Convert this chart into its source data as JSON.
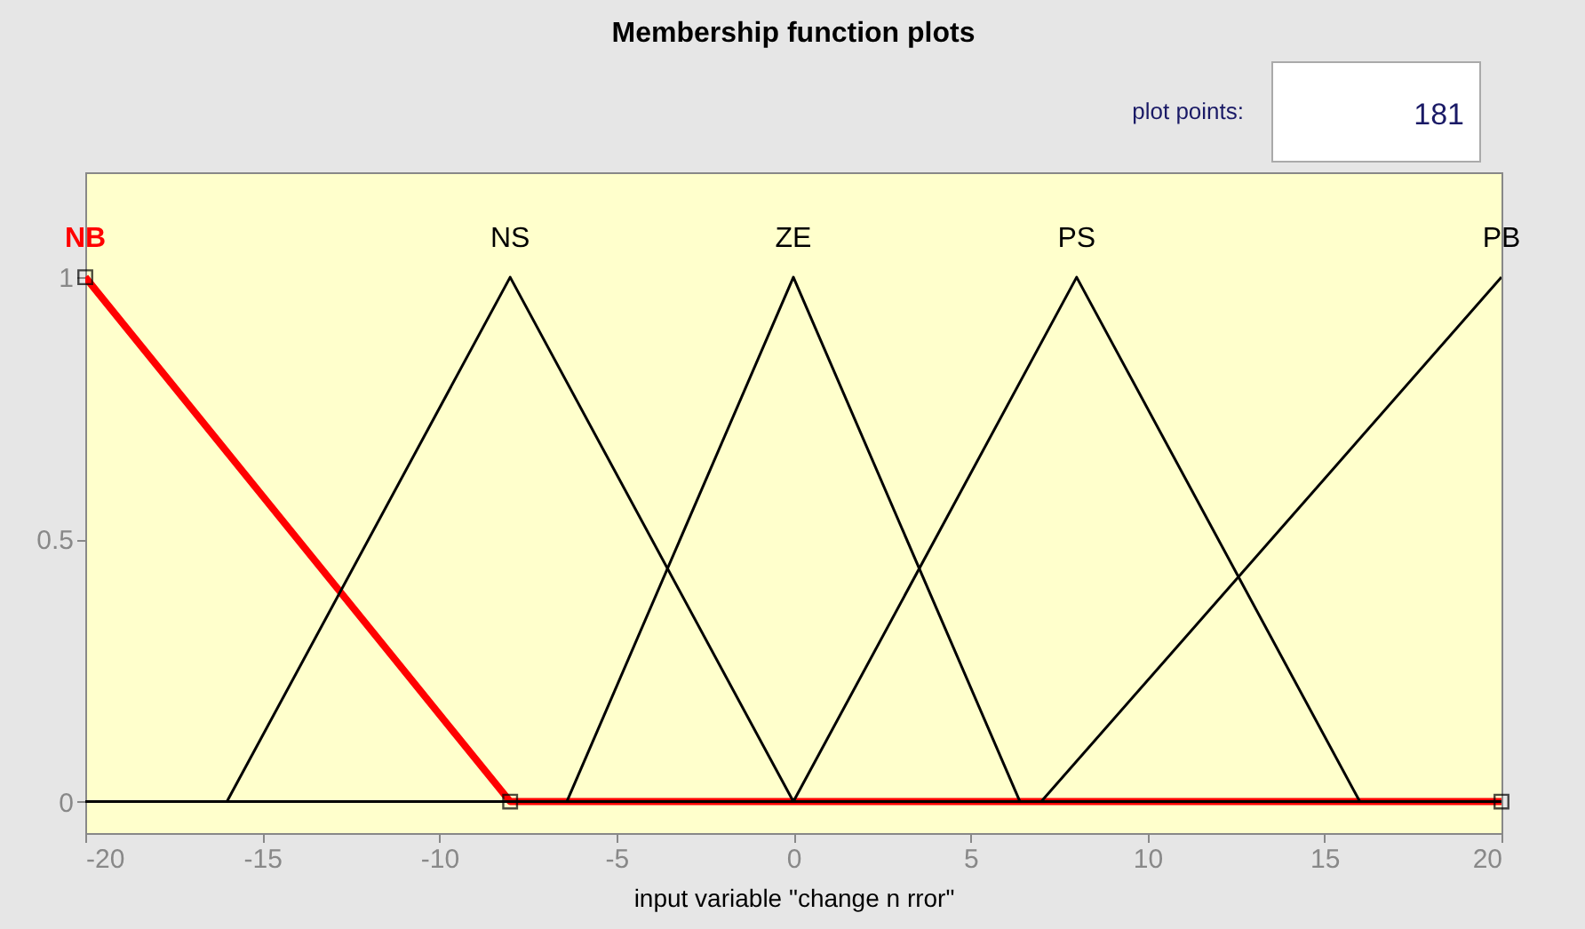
{
  "chart_data": {
    "type": "line",
    "title": "Membership function plots",
    "xlabel": "input variable \"change n rror\"",
    "xlim": [
      -20,
      20
    ],
    "xticks": [
      -20,
      -15,
      -10,
      -5,
      0,
      5,
      10,
      15,
      20
    ],
    "ylim": [
      -0.06,
      1.2
    ],
    "yticks": [
      0,
      0.5,
      1
    ],
    "grid": false,
    "line_style": "solid",
    "annotations": [
      "plot points:",
      "181"
    ],
    "series": [
      {
        "name": "NB",
        "color": "#ff0000",
        "marker": "square",
        "x": [
          -20,
          -8,
          20
        ],
        "values": [
          1,
          0,
          0
        ]
      },
      {
        "name": "NS",
        "color": "#000000",
        "x": [
          -20,
          -16,
          -8,
          0,
          20
        ],
        "values": [
          0,
          0,
          1,
          0,
          0
        ]
      },
      {
        "name": "ZE",
        "color": "#000000",
        "x": [
          -20,
          -6.4,
          0,
          6.4,
          20
        ],
        "values": [
          0,
          0,
          1,
          0,
          0
        ]
      },
      {
        "name": "PS",
        "color": "#000000",
        "x": [
          -20,
          0,
          8,
          16,
          20
        ],
        "values": [
          0,
          0,
          1,
          0,
          0
        ]
      },
      {
        "name": "PB",
        "color": "#000000",
        "x": [
          -20,
          7,
          20
        ],
        "values": [
          0,
          0,
          1
        ]
      }
    ]
  }
}
